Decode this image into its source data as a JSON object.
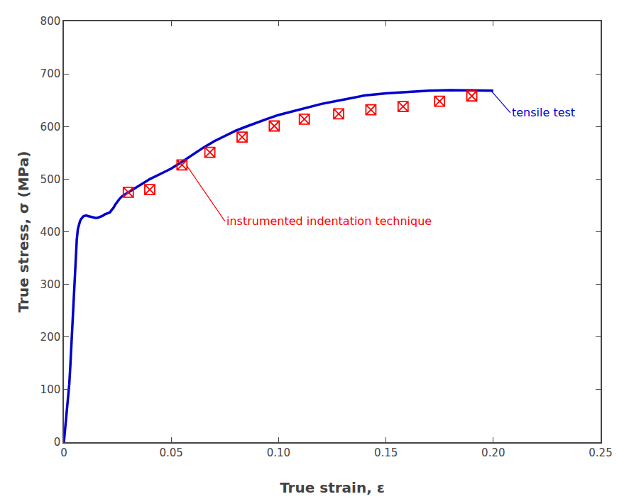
{
  "chart_data": {
    "type": "line",
    "xlabel": "True strain, ε",
    "ylabel": "True stress, σ (MPa)",
    "xlim": [
      0,
      0.25
    ],
    "ylim": [
      0,
      800
    ],
    "xticks": [
      0,
      0.05,
      {
        "value": 0.1,
        "label": "0.10"
      },
      0.15,
      {
        "value": 0.2,
        "label": "0.20"
      },
      0.25
    ],
    "yticks": [
      0,
      100,
      200,
      300,
      400,
      500,
      600,
      700,
      800
    ],
    "grid": false,
    "series": [
      {
        "type": "line",
        "color": "#0000CC",
        "x": [
          0.0,
          0.0005,
          0.001,
          0.0015,
          0.002,
          0.0025,
          0.003,
          0.0035,
          0.004,
          0.0045,
          0.005,
          0.0055,
          0.006,
          0.0065,
          0.007,
          0.0075,
          0.008,
          0.0085,
          0.009,
          0.0095,
          0.01,
          0.0105,
          0.011,
          0.012,
          0.013,
          0.014,
          0.015,
          0.016,
          0.017,
          0.018,
          0.019,
          0.0195,
          0.02,
          0.0205,
          0.021,
          0.0215,
          0.022,
          0.023,
          0.024,
          0.025,
          0.026,
          0.027,
          0.028,
          0.029,
          0.03,
          0.032,
          0.034,
          0.036,
          0.038,
          0.04,
          0.045,
          0.05,
          0.055,
          0.06,
          0.065,
          0.07,
          0.075,
          0.08,
          0.085,
          0.09,
          0.095,
          0.1,
          0.11,
          0.12,
          0.13,
          0.14,
          0.15,
          0.16,
          0.17,
          0.18,
          0.19,
          0.2
        ],
        "values": [
          0,
          20,
          40,
          60,
          85,
          110,
          145,
          185,
          230,
          275,
          320,
          355,
          385,
          405,
          415,
          420,
          424,
          427,
          429,
          430,
          431,
          431,
          430,
          429,
          428,
          427,
          426,
          427,
          428,
          430,
          433,
          434,
          435,
          435,
          436,
          437,
          440,
          445,
          452,
          458,
          463,
          467,
          470,
          472,
          475,
          480,
          485,
          490,
          495,
          500,
          510,
          520,
          533,
          547,
          560,
          572,
          582,
          592,
          600,
          608,
          615,
          622,
          633,
          643,
          651,
          659,
          663,
          666,
          668,
          669,
          668,
          668
        ]
      },
      {
        "type": "scatter",
        "color": "#FF0000",
        "marker": "square_x",
        "x": [
          0.03,
          0.04,
          0.055,
          0.068,
          0.083,
          0.098,
          0.112,
          0.128,
          0.143,
          0.158,
          0.175,
          0.19
        ],
        "values": [
          475,
          480,
          527,
          551,
          580,
          601,
          614,
          624,
          632,
          638,
          648,
          658
        ]
      }
    ],
    "annotations": [
      {
        "text": "tensile test",
        "color": "#0000CC",
        "xy": [
          0.199,
          668
        ],
        "text_xy": [
          0.208,
          626
        ]
      },
      {
        "text": "instrumented indentation technique",
        "color": "#FF0000",
        "xy": [
          0.057,
          527
        ],
        "text_xy": [
          0.075,
          420
        ]
      }
    ]
  }
}
